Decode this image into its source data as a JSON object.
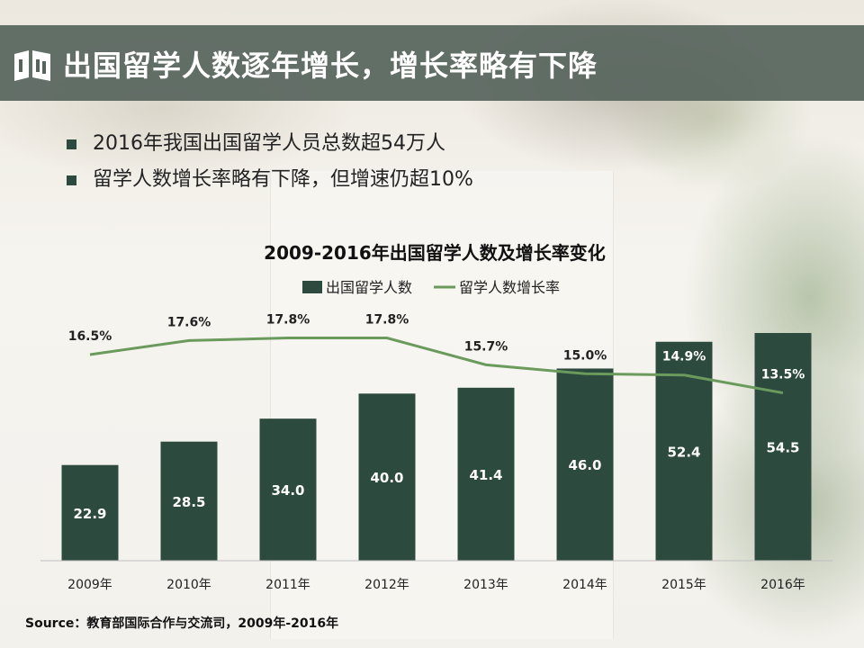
{
  "slide": {
    "title": "出国留学人数逐年增长，增长率略有下降",
    "bullets": [
      "2016年我国出国留学人员总数超54万人",
      "留学人数增长率略有下降，但增速仍超10%"
    ],
    "source": "Source：教育部国际合作与交流司，2009年-2016年"
  },
  "colors": {
    "bar": "#2d4a3e",
    "line": "#6a9a5c",
    "title_bar": "#56645c"
  },
  "chart_data": {
    "type": "bar",
    "title": "2009-2016年出国留学人数及增长率变化",
    "categories": [
      "2009年",
      "2010年",
      "2011年",
      "2012年",
      "2013年",
      "2014年",
      "2015年",
      "2016年"
    ],
    "series": [
      {
        "name": "出国留学人数",
        "type": "bar",
        "values": [
          22.9,
          28.5,
          34.0,
          40.0,
          41.4,
          46.0,
          52.4,
          54.5
        ],
        "labels": [
          "22.9",
          "28.5",
          "34.0",
          "40.0",
          "41.4",
          "46.0",
          "52.4",
          "54.5"
        ]
      },
      {
        "name": "留学人数增长率",
        "type": "line",
        "values": [
          16.5,
          17.6,
          17.8,
          17.8,
          15.7,
          15.0,
          14.9,
          13.5
        ],
        "labels": [
          "16.5%",
          "17.6%",
          "17.8%",
          "17.8%",
          "15.7%",
          "15.0%",
          "14.9%",
          "13.5%"
        ]
      }
    ],
    "ylim": [
      0,
      60
    ],
    "y2lim": [
      0,
      30
    ],
    "legend": "top",
    "grid": false,
    "xlabel": "",
    "ylabel": ""
  }
}
